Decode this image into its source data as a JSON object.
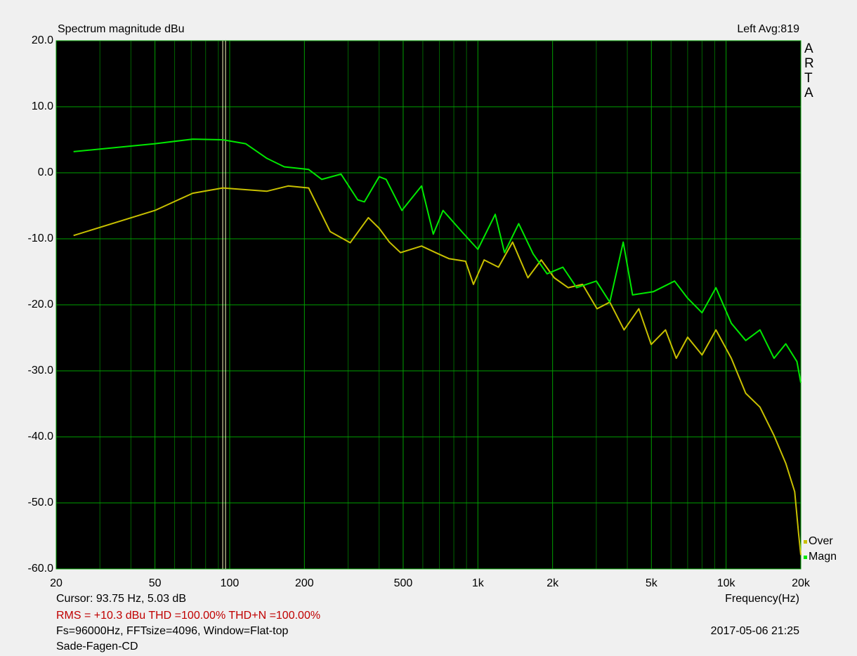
{
  "chart_data": {
    "type": "line",
    "title": "Spectrum magnitude dBu",
    "channel_label": "Left  Avg:819",
    "side_label": [
      "A",
      "R",
      "T",
      "A"
    ],
    "x_label": "Frequency(Hz)",
    "cursor_text": "Cursor: 93.75 Hz, 5.03 dB",
    "cursor_x": 93.75,
    "stats_text": "RMS =  +10.3 dBu   THD =100.00%   THD+N =100.00%",
    "settings_text": "Fs=96000Hz, FFTsize=4096, Window=Flat-top",
    "timestamp": "2017-05-06  21:25",
    "file_name": "Sade-Fagen-CD",
    "log_x": true,
    "grid": true,
    "xlim": [
      20,
      20000
    ],
    "ylim": [
      -60,
      20
    ],
    "xticks": [
      20,
      50,
      100,
      200,
      500,
      {
        "value": 1000,
        "label": "1k"
      },
      {
        "value": 2000,
        "label": "2k"
      },
      {
        "value": 5000,
        "label": "5k"
      },
      {
        "value": 10000,
        "label": "10k"
      },
      {
        "value": 20000,
        "label": "20k"
      }
    ],
    "xminorticks": [
      30,
      40,
      60,
      70,
      80,
      90,
      300,
      400,
      600,
      700,
      800,
      900,
      3000,
      4000,
      6000,
      7000,
      8000,
      9000
    ],
    "yticks": [
      {
        "value": 20,
        "label": "20.0"
      },
      {
        "value": 10,
        "label": "10.0"
      },
      {
        "value": 0,
        "label": "0.0"
      },
      {
        "value": -10,
        "label": "-10.0"
      },
      {
        "value": -20,
        "label": "-20.0"
      },
      {
        "value": -30,
        "label": "-30.0"
      },
      {
        "value": -40,
        "label": "-40.0"
      },
      {
        "value": -50,
        "label": "-50.0"
      },
      {
        "value": -60,
        "label": "-60.0"
      }
    ],
    "series": [
      {
        "name": "Magn",
        "color": "#00e800",
        "x": [
          23.5,
          50,
          71,
          93.75,
          116,
          141,
          166,
          208,
          235,
          281,
          328,
          349,
          400,
          427,
          494,
          593,
          661,
          724,
          870,
          1000,
          1175,
          1280,
          1460,
          1670,
          1900,
          2200,
          2500,
          3000,
          3400,
          3850,
          4200,
          5100,
          6200,
          7000,
          8000,
          9100,
          10500,
          12000,
          13700,
          15600,
          17400,
          19300,
          20000
        ],
        "values": [
          3.2,
          4.4,
          5.1,
          5.0,
          4.4,
          2.2,
          0.9,
          0.5,
          -1.0,
          -0.2,
          -4.1,
          -4.4,
          -0.6,
          -1.0,
          -5.7,
          -2.0,
          -9.3,
          -5.7,
          -9.1,
          -11.6,
          -6.3,
          -12.1,
          -7.7,
          -12.3,
          -15.3,
          -14.3,
          -17.4,
          -16.4,
          -19.6,
          -10.5,
          -18.5,
          -18.0,
          -16.4,
          -19.0,
          -21.2,
          -17.4,
          -22.8,
          -25.4,
          -23.8,
          -28.1,
          -25.9,
          -28.6,
          -31.8
        ]
      },
      {
        "name": "Over",
        "color": "#c8c000",
        "x": [
          23.5,
          50,
          71,
          93.75,
          141,
          172,
          208,
          254,
          306,
          362,
          400,
          440,
          488,
          593,
          676,
          764,
          892,
          960,
          1060,
          1210,
          1380,
          1590,
          1800,
          2030,
          2310,
          2640,
          3020,
          3400,
          3880,
          4450,
          4990,
          5700,
          6300,
          7000,
          8000,
          9100,
          10500,
          12000,
          13700,
          15600,
          17400,
          18900,
          19600,
          20000
        ],
        "values": [
          -9.5,
          -5.7,
          -3.1,
          -2.3,
          -2.8,
          -2.0,
          -2.3,
          -8.9,
          -10.6,
          -6.8,
          -8.4,
          -10.5,
          -12.1,
          -11.1,
          -12.1,
          -13.0,
          -13.4,
          -16.9,
          -13.2,
          -14.3,
          -10.5,
          -15.9,
          -13.2,
          -15.9,
          -17.4,
          -16.9,
          -20.6,
          -19.6,
          -23.8,
          -20.6,
          -26.0,
          -23.8,
          -28.1,
          -24.9,
          -27.6,
          -23.8,
          -28.1,
          -33.4,
          -35.5,
          -39.8,
          -44.0,
          -48.3,
          -54.7,
          -57.9
        ]
      }
    ]
  }
}
